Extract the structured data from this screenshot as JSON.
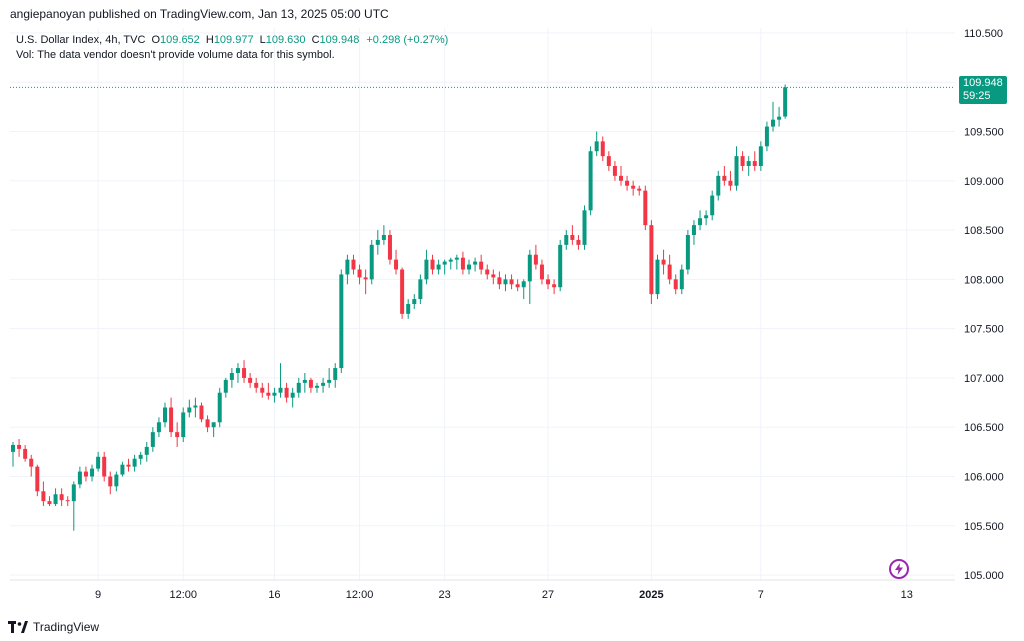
{
  "header": {
    "published_text": "angiepanoyan published on TradingView.com, Jan 13, 2025 05:00 UTC"
  },
  "legend": {
    "symbol": "U.S. Dollar Index, 4h, TVC",
    "open_label": "O",
    "open": "109.652",
    "high_label": "H",
    "high": "109.977",
    "low_label": "L",
    "low": "109.630",
    "close_label": "C",
    "close": "109.948",
    "change": "+0.298 (+0.27%)",
    "vol_note": "Vol: The data vendor doesn't provide volume data for this symbol."
  },
  "price_badge": {
    "price": "109.948",
    "countdown": "59:25"
  },
  "footer": {
    "brand": "TradingView"
  },
  "colors": {
    "up": "#089981",
    "down": "#f23645",
    "grid": "#f0f3fa",
    "axis_text": "#131722"
  },
  "chart_data": {
    "type": "candlestick",
    "ylim": [
      104.95,
      110.55
    ],
    "y_ticks": [
      "110.500",
      "110.000",
      "109.500",
      "109.000",
      "108.500",
      "108.000",
      "107.500",
      "107.000",
      "106.500",
      "106.000",
      "105.500",
      "105.000"
    ],
    "y_tick_values": [
      110.5,
      110.0,
      109.5,
      109.0,
      108.5,
      108.0,
      107.5,
      107.0,
      106.5,
      106.0,
      105.5,
      105.0
    ],
    "x_ticks": [
      {
        "label": "9",
        "index": 14
      },
      {
        "label": "12:00",
        "index": 28
      },
      {
        "label": "16",
        "index": 43
      },
      {
        "label": "12:00",
        "index": 57
      },
      {
        "label": "23",
        "index": 71
      },
      {
        "label": "27",
        "index": 88
      },
      {
        "label": "2025",
        "index": 105,
        "bold": true
      },
      {
        "label": "7",
        "index": 123
      },
      {
        "label": "13",
        "index": 147
      }
    ],
    "last_price": 109.948,
    "candles": [
      [
        106.25,
        106.35,
        106.1,
        106.32
      ],
      [
        106.32,
        106.38,
        106.2,
        106.28
      ],
      [
        106.28,
        106.32,
        106.15,
        106.18
      ],
      [
        106.18,
        106.22,
        106.0,
        106.1
      ],
      [
        106.1,
        106.12,
        105.8,
        105.85
      ],
      [
        105.85,
        105.95,
        105.7,
        105.75
      ],
      [
        105.75,
        105.8,
        105.7,
        105.72
      ],
      [
        105.72,
        105.88,
        105.7,
        105.82
      ],
      [
        105.82,
        105.88,
        105.7,
        105.76
      ],
      [
        105.76,
        105.8,
        105.7,
        105.75
      ],
      [
        105.75,
        105.95,
        105.45,
        105.92
      ],
      [
        105.92,
        106.1,
        105.88,
        106.05
      ],
      [
        106.05,
        106.1,
        105.95,
        106.0
      ],
      [
        106.0,
        106.12,
        105.95,
        106.08
      ],
      [
        106.08,
        106.25,
        106.05,
        106.2
      ],
      [
        106.2,
        106.25,
        105.95,
        106.0
      ],
      [
        106.0,
        106.05,
        105.82,
        105.9
      ],
      [
        105.9,
        106.05,
        105.85,
        106.02
      ],
      [
        106.02,
        106.15,
        106.0,
        106.12
      ],
      [
        106.12,
        106.18,
        106.05,
        106.1
      ],
      [
        106.1,
        106.22,
        106.05,
        106.18
      ],
      [
        106.18,
        106.25,
        106.12,
        106.22
      ],
      [
        106.22,
        106.35,
        106.15,
        106.3
      ],
      [
        106.3,
        106.5,
        106.25,
        106.45
      ],
      [
        106.45,
        106.6,
        106.4,
        106.55
      ],
      [
        106.55,
        106.75,
        106.5,
        106.7
      ],
      [
        106.7,
        106.8,
        106.4,
        106.45
      ],
      [
        106.45,
        106.55,
        106.3,
        106.4
      ],
      [
        106.4,
        106.7,
        106.35,
        106.65
      ],
      [
        106.65,
        106.78,
        106.6,
        106.7
      ],
      [
        106.7,
        106.8,
        106.6,
        106.72
      ],
      [
        106.72,
        106.75,
        106.55,
        106.58
      ],
      [
        106.58,
        106.62,
        106.45,
        106.5
      ],
      [
        106.5,
        106.55,
        106.4,
        106.55
      ],
      [
        106.55,
        106.9,
        106.5,
        106.85
      ],
      [
        106.85,
        107.0,
        106.8,
        106.98
      ],
      [
        106.98,
        107.1,
        106.9,
        107.05
      ],
      [
        107.05,
        107.15,
        106.95,
        107.1
      ],
      [
        107.1,
        107.18,
        106.95,
        107.0
      ],
      [
        107.0,
        107.05,
        106.9,
        106.95
      ],
      [
        106.95,
        107.0,
        106.85,
        106.9
      ],
      [
        106.9,
        106.95,
        106.8,
        106.85
      ],
      [
        106.85,
        106.95,
        106.78,
        106.82
      ],
      [
        106.82,
        106.9,
        106.75,
        106.85
      ],
      [
        106.85,
        107.15,
        106.8,
        106.9
      ],
      [
        106.9,
        106.95,
        106.75,
        106.8
      ],
      [
        106.8,
        106.9,
        106.7,
        106.85
      ],
      [
        106.85,
        107.0,
        106.8,
        106.95
      ],
      [
        106.95,
        107.05,
        106.85,
        106.98
      ],
      [
        106.98,
        107.0,
        106.85,
        106.9
      ],
      [
        106.9,
        106.95,
        106.85,
        106.92
      ],
      [
        106.92,
        107.0,
        106.85,
        106.95
      ],
      [
        106.95,
        107.1,
        106.9,
        106.98
      ],
      [
        106.98,
        107.15,
        106.9,
        107.1
      ],
      [
        107.1,
        108.1,
        107.05,
        108.05
      ],
      [
        108.05,
        108.25,
        107.95,
        108.2
      ],
      [
        108.2,
        108.25,
        108.05,
        108.1
      ],
      [
        108.1,
        108.15,
        107.95,
        108.02
      ],
      [
        108.02,
        108.1,
        107.85,
        108.0
      ],
      [
        108.0,
        108.4,
        107.95,
        108.35
      ],
      [
        108.35,
        108.5,
        108.25,
        108.4
      ],
      [
        108.4,
        108.55,
        108.35,
        108.45
      ],
      [
        108.45,
        108.5,
        108.15,
        108.2
      ],
      [
        108.2,
        108.3,
        108.05,
        108.1
      ],
      [
        108.1,
        108.12,
        107.6,
        107.65
      ],
      [
        107.65,
        107.8,
        107.6,
        107.75
      ],
      [
        107.75,
        107.85,
        107.7,
        107.8
      ],
      [
        107.8,
        108.05,
        107.75,
        108.0
      ],
      [
        108.0,
        108.3,
        107.95,
        108.2
      ],
      [
        108.2,
        108.25,
        108.05,
        108.1
      ],
      [
        108.1,
        108.2,
        108.05,
        108.15
      ],
      [
        108.15,
        108.2,
        108.05,
        108.18
      ],
      [
        108.18,
        108.22,
        108.1,
        108.2
      ],
      [
        108.2,
        108.25,
        108.1,
        108.22
      ],
      [
        108.22,
        108.28,
        108.05,
        108.1
      ],
      [
        108.1,
        108.2,
        108.05,
        108.15
      ],
      [
        108.15,
        108.22,
        108.08,
        108.18
      ],
      [
        108.18,
        108.25,
        108.05,
        108.1
      ],
      [
        108.1,
        108.15,
        108.0,
        108.05
      ],
      [
        108.05,
        108.1,
        107.95,
        108.02
      ],
      [
        108.02,
        108.08,
        107.9,
        107.95
      ],
      [
        107.95,
        108.05,
        107.88,
        108.0
      ],
      [
        108.0,
        108.05,
        107.9,
        107.95
      ],
      [
        107.95,
        108.0,
        107.88,
        107.92
      ],
      [
        107.92,
        108.0,
        107.8,
        107.98
      ],
      [
        107.98,
        108.3,
        107.75,
        108.25
      ],
      [
        108.25,
        108.35,
        108.1,
        108.15
      ],
      [
        108.15,
        108.2,
        107.95,
        108.0
      ],
      [
        108.0,
        108.05,
        107.9,
        107.95
      ],
      [
        107.95,
        108.0,
        107.85,
        107.92
      ],
      [
        107.92,
        108.4,
        107.88,
        108.35
      ],
      [
        108.35,
        108.5,
        108.3,
        108.45
      ],
      [
        108.45,
        108.55,
        108.35,
        108.4
      ],
      [
        108.4,
        108.45,
        108.3,
        108.35
      ],
      [
        108.35,
        108.75,
        108.3,
        108.7
      ],
      [
        108.7,
        109.35,
        108.65,
        109.3
      ],
      [
        109.3,
        109.5,
        109.25,
        109.4
      ],
      [
        109.4,
        109.45,
        109.2,
        109.25
      ],
      [
        109.25,
        109.3,
        109.1,
        109.15
      ],
      [
        109.15,
        109.2,
        109.0,
        109.05
      ],
      [
        109.05,
        109.15,
        108.95,
        109.0
      ],
      [
        109.0,
        109.05,
        108.9,
        108.95
      ],
      [
        108.95,
        109.0,
        108.85,
        108.92
      ],
      [
        108.92,
        108.95,
        108.85,
        108.9
      ],
      [
        108.9,
        108.95,
        108.5,
        108.55
      ],
      [
        108.55,
        108.6,
        107.75,
        107.85
      ],
      [
        107.85,
        108.25,
        107.8,
        108.2
      ],
      [
        108.2,
        108.3,
        108.05,
        108.15
      ],
      [
        108.15,
        108.25,
        107.95,
        108.0
      ],
      [
        108.0,
        108.05,
        107.85,
        107.9
      ],
      [
        107.9,
        108.15,
        107.85,
        108.1
      ],
      [
        108.1,
        108.5,
        108.05,
        108.45
      ],
      [
        108.45,
        108.6,
        108.35,
        108.55
      ],
      [
        108.55,
        108.7,
        108.5,
        108.62
      ],
      [
        108.62,
        108.7,
        108.55,
        108.65
      ],
      [
        108.65,
        108.9,
        108.6,
        108.85
      ],
      [
        108.85,
        109.1,
        108.8,
        109.05
      ],
      [
        109.05,
        109.15,
        108.95,
        109.0
      ],
      [
        109.0,
        109.1,
        108.9,
        108.95
      ],
      [
        108.95,
        109.35,
        108.9,
        109.25
      ],
      [
        109.25,
        109.3,
        109.1,
        109.15
      ],
      [
        109.15,
        109.25,
        109.05,
        109.2
      ],
      [
        109.2,
        109.3,
        109.1,
        109.15
      ],
      [
        109.15,
        109.4,
        109.1,
        109.35
      ],
      [
        109.35,
        109.6,
        109.3,
        109.55
      ],
      [
        109.55,
        109.8,
        109.5,
        109.62
      ],
      [
        109.62,
        109.75,
        109.55,
        109.65
      ],
      [
        109.652,
        109.977,
        109.63,
        109.948
      ]
    ]
  }
}
